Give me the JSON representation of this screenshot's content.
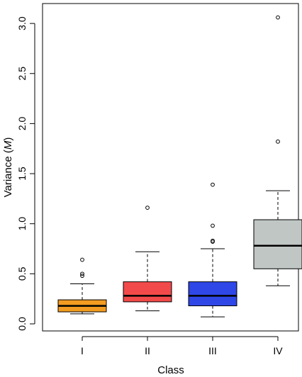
{
  "chart_data": {
    "type": "box",
    "xlabel": "Class",
    "ylabel": "Variance (",
    "ylabel_italic": "M",
    "ylabel_end": ")",
    "ylim": [
      0,
      3.0
    ],
    "yticks": [
      0.0,
      0.5,
      1.0,
      1.5,
      2.0,
      2.5,
      3.0
    ],
    "ytick_labels": [
      "0.0",
      "0.5",
      "1.0",
      "1.5",
      "2.0",
      "2.5",
      "3.0"
    ],
    "grid": false,
    "categories": [
      "I",
      "II",
      "III",
      "IV"
    ],
    "boxes": [
      {
        "label": "I",
        "color": "#f39c21",
        "whisker_low": 0.1,
        "q1": 0.12,
        "median": 0.18,
        "q3": 0.24,
        "whisker_high": 0.4,
        "outliers": [
          0.48,
          0.5,
          0.64
        ]
      },
      {
        "label": "II",
        "color": "#f24a4a",
        "whisker_low": 0.13,
        "q1": 0.22,
        "median": 0.28,
        "q3": 0.42,
        "whisker_high": 0.72,
        "outliers": [
          1.16
        ]
      },
      {
        "label": "III",
        "color": "#2f47e6",
        "whisker_low": 0.07,
        "q1": 0.18,
        "median": 0.28,
        "q3": 0.42,
        "whisker_high": 0.75,
        "outliers": [
          0.82,
          0.83,
          0.98,
          1.39
        ]
      },
      {
        "label": "IV",
        "color": "#bfc6c4",
        "whisker_low": 0.38,
        "q1": 0.55,
        "median": 0.78,
        "q3": 1.04,
        "whisker_high": 1.33,
        "outliers": [
          1.82,
          3.06
        ]
      }
    ]
  }
}
